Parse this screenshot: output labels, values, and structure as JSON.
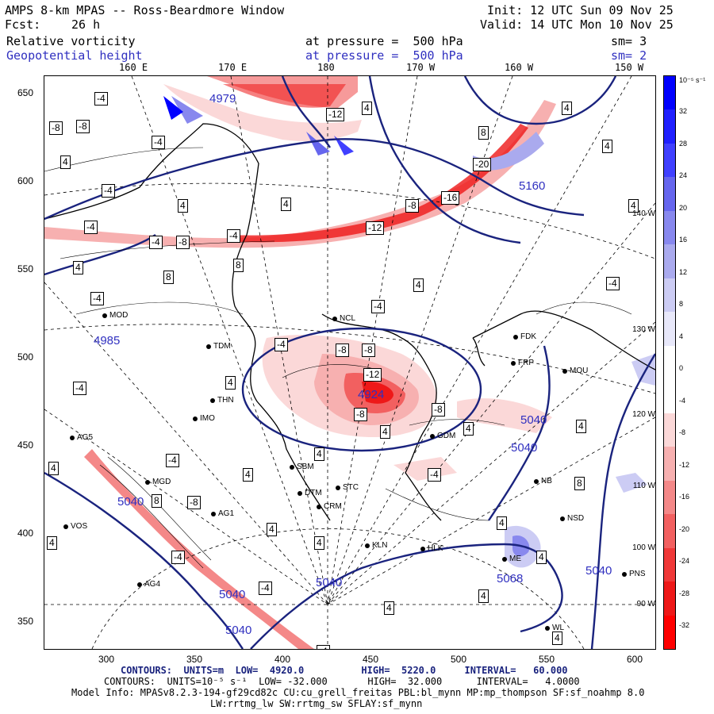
{
  "header": {
    "title": "AMPS 8-km MPAS -- Ross-Beardmore Window",
    "init": "Init: 12 UTC Sun 09 Nov 25",
    "fcst_label": "Fcst:",
    "fcst_value": "26 h",
    "valid": "Valid: 14 UTC Mon 10 Nov 25",
    "field1": "Relative vorticity",
    "field1_level": "at pressure =  500 hPa",
    "field1_sm": "sm= 3",
    "field2": "Geopotential height",
    "field2_level": "at pressure =  500 hPa",
    "field2_sm": "sm= 2"
  },
  "top_longitudes": [
    {
      "label": "160 E"
    },
    {
      "label": "170 E"
    },
    {
      "label": "180"
    },
    {
      "label": "170 W"
    },
    {
      "label": "160 W"
    },
    {
      "label": "150 W"
    }
  ],
  "right_longitudes": [
    {
      "label": "140 W"
    },
    {
      "label": "130 W"
    },
    {
      "label": "120 W"
    },
    {
      "label": "110 W"
    },
    {
      "label": "100 W"
    },
    {
      "label": "90 W"
    }
  ],
  "y_ticks": [
    "650",
    "600",
    "550",
    "500",
    "450",
    "400",
    "350"
  ],
  "x_ticks": [
    "300",
    "350",
    "400",
    "450",
    "500",
    "550",
    "600"
  ],
  "colorbar": {
    "unit": "10⁻⁵ s⁻¹",
    "ticks": [
      "32",
      "28",
      "24",
      "20",
      "16",
      "12",
      "8",
      "4",
      "0",
      "-4",
      "-8",
      "-12",
      "-16",
      "-20",
      "-24",
      "-28",
      "-32"
    ],
    "colors": [
      "#0000ff",
      "#2020ff",
      "#4040ff",
      "#6666ee",
      "#8888ee",
      "#aaaaee",
      "#ccccf4",
      "#e8e8fa",
      "#ffffff",
      "#ffffff",
      "#fbd8d8",
      "#f7b0b0",
      "#f48888",
      "#f26060",
      "#f03838",
      "#ee1818",
      "#ff0000"
    ]
  },
  "stations": [
    {
      "name": "MOD"
    },
    {
      "name": "TDM"
    },
    {
      "name": "THN"
    },
    {
      "name": "IMO"
    },
    {
      "name": "AG5"
    },
    {
      "name": "MGD"
    },
    {
      "name": "AG1"
    },
    {
      "name": "VOS"
    },
    {
      "name": "AG4"
    },
    {
      "name": "SBM"
    },
    {
      "name": "DTM"
    },
    {
      "name": "STC"
    },
    {
      "name": "CRM"
    },
    {
      "name": "KLN"
    },
    {
      "name": "HLK"
    },
    {
      "name": "NCL"
    },
    {
      "name": "FDK"
    },
    {
      "name": "FRP"
    },
    {
      "name": "MOU"
    },
    {
      "name": "GDM"
    },
    {
      "name": "NB"
    },
    {
      "name": "NSD"
    },
    {
      "name": "ME"
    },
    {
      "name": "PNS"
    },
    {
      "name": "WL"
    }
  ],
  "height_labels": [
    "4985",
    "4924",
    "5040",
    "5040",
    "5040",
    "5040",
    "5040",
    "5040",
    "5040",
    "5068",
    "5160",
    "4979"
  ],
  "vorticity_labels": [
    "-4",
    "-8",
    "4",
    "-8",
    "-4",
    "4",
    "-12",
    "8",
    "-20",
    "-16",
    "-8",
    "4",
    "-4",
    "-4",
    "4",
    "8",
    "-4",
    "-4",
    "-8",
    "-12",
    "-8",
    "8",
    "4",
    "-4",
    "4",
    "-4",
    "-8",
    "-12",
    "4",
    "-8",
    "4",
    "-4",
    "4",
    "-4",
    "-4",
    "4",
    "8",
    "-4",
    "4",
    "4",
    "-4",
    "-8",
    "4",
    "4",
    "-4",
    "4",
    "4",
    "-8",
    "4",
    "4",
    "8",
    "4",
    "-4",
    "4",
    "4",
    "-4",
    "4",
    "4",
    "4",
    "4"
  ],
  "footer": {
    "contours1": "CONTOURS:  UNITS=m  LOW=  4920.0          HIGH=  5220.0     INTERVAL=   60.000",
    "contours2": "CONTOURS:  UNITS=10⁻⁵ s⁻¹  LOW= -32.000       HIGH=  32.000      INTERVAL=   4.0000",
    "model_info": "Model Info: MPASv8.2.3-194-gf29cd82c CU:cu_grell_freitas PBL:bl_mynn MP:mp_thompson SF:sf_noahmp 8.0",
    "model_info2": "LW:rrtmg_lw SW:rrtmg_sw SFLAY:sf_mynn"
  }
}
